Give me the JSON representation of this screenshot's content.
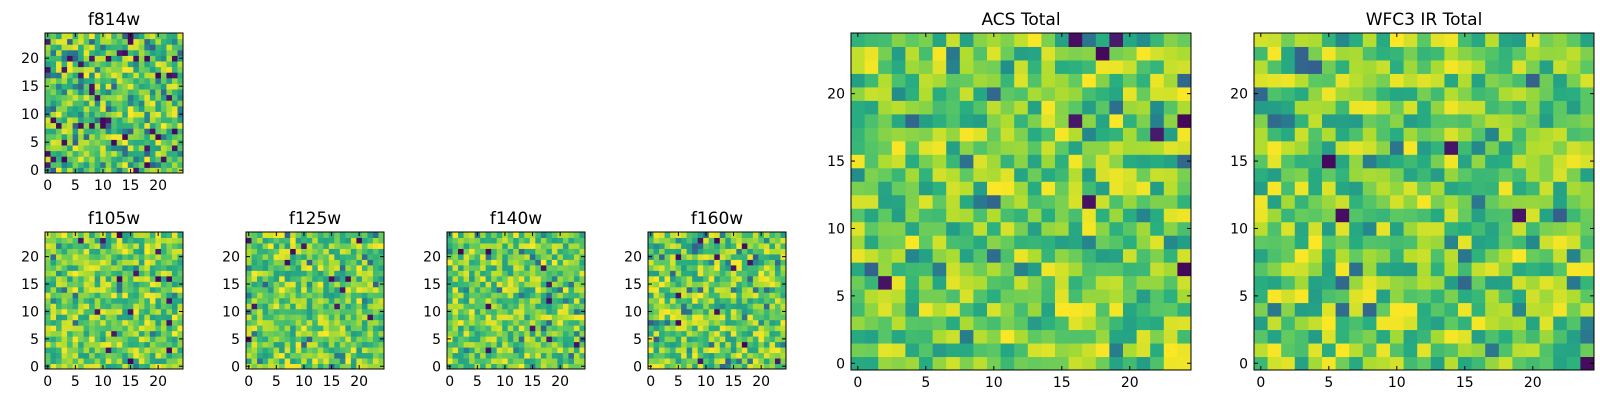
{
  "figure_title": "",
  "colors": {
    "viridis_low": "#440154",
    "viridis_mid": "#21918c",
    "viridis_high": "#fde725",
    "axis": "#000000",
    "background": "#ffffff"
  },
  "chart_data": [
    {
      "id": "f814w",
      "type": "heatmap",
      "title": "f814w",
      "xlabel": "",
      "ylabel": "",
      "grid": false,
      "colormap": "viridis",
      "shape": [
        25,
        25
      ],
      "xlim": [
        -0.5,
        24.5
      ],
      "ylim": [
        -0.5,
        24.5
      ],
      "xticks": [
        0,
        5,
        10,
        15,
        20
      ],
      "yticks": [
        0,
        5,
        10,
        15,
        20
      ],
      "seed": 814,
      "dark_fraction": 0.06
    },
    {
      "id": "f105w",
      "type": "heatmap",
      "title": "f105w",
      "xlabel": "",
      "ylabel": "",
      "grid": false,
      "colormap": "viridis",
      "shape": [
        25,
        25
      ],
      "xlim": [
        -0.5,
        24.5
      ],
      "ylim": [
        -0.5,
        24.5
      ],
      "xticks": [
        0,
        5,
        10,
        15,
        20
      ],
      "yticks": [
        0,
        5,
        10,
        15,
        20
      ],
      "seed": 105,
      "dark_fraction": 0.02
    },
    {
      "id": "f125w",
      "type": "heatmap",
      "title": "f125w",
      "xlabel": "",
      "ylabel": "",
      "grid": false,
      "colormap": "viridis",
      "shape": [
        25,
        25
      ],
      "xlim": [
        -0.5,
        24.5
      ],
      "ylim": [
        -0.5,
        24.5
      ],
      "xticks": [
        0,
        5,
        10,
        15,
        20
      ],
      "yticks": [
        0,
        5,
        10,
        15,
        20
      ],
      "seed": 125,
      "dark_fraction": 0.02
    },
    {
      "id": "f140w",
      "type": "heatmap",
      "title": "f140w",
      "xlabel": "",
      "ylabel": "",
      "grid": false,
      "colormap": "viridis",
      "shape": [
        25,
        25
      ],
      "xlim": [
        -0.5,
        24.5
      ],
      "ylim": [
        -0.5,
        24.5
      ],
      "xticks": [
        0,
        5,
        10,
        15,
        20
      ],
      "yticks": [
        0,
        5,
        10,
        15,
        20
      ],
      "seed": 140,
      "dark_fraction": 0.02
    },
    {
      "id": "f160w",
      "type": "heatmap",
      "title": "f160w",
      "xlabel": "",
      "ylabel": "",
      "grid": false,
      "colormap": "viridis",
      "shape": [
        25,
        25
      ],
      "xlim": [
        -0.5,
        24.5
      ],
      "ylim": [
        -0.5,
        24.5
      ],
      "xticks": [
        0,
        5,
        10,
        15,
        20
      ],
      "yticks": [
        0,
        5,
        10,
        15,
        20
      ],
      "seed": 160,
      "dark_fraction": 0.03
    },
    {
      "id": "acs-total",
      "type": "heatmap",
      "title": "ACS Total",
      "xlabel": "",
      "ylabel": "",
      "grid": false,
      "colormap": "viridis",
      "shape": [
        25,
        25
      ],
      "xlim": [
        -0.5,
        24.5
      ],
      "ylim": [
        -0.5,
        24.5
      ],
      "xticks": [
        0,
        5,
        10,
        15,
        20
      ],
      "yticks": [
        0,
        5,
        10,
        15,
        20
      ],
      "seed": 1001,
      "dark_fraction": 0.02
    },
    {
      "id": "wfc3-ir-total",
      "type": "heatmap",
      "title": "WFC3 IR Total",
      "xlabel": "",
      "ylabel": "",
      "grid": false,
      "colormap": "viridis",
      "shape": [
        25,
        25
      ],
      "xlim": [
        -0.5,
        24.5
      ],
      "ylim": [
        -0.5,
        24.5
      ],
      "xticks": [
        0,
        5,
        10,
        15,
        20
      ],
      "yticks": [
        0,
        5,
        10,
        15,
        20
      ],
      "seed": 2002,
      "dark_fraction": 0.015
    }
  ]
}
